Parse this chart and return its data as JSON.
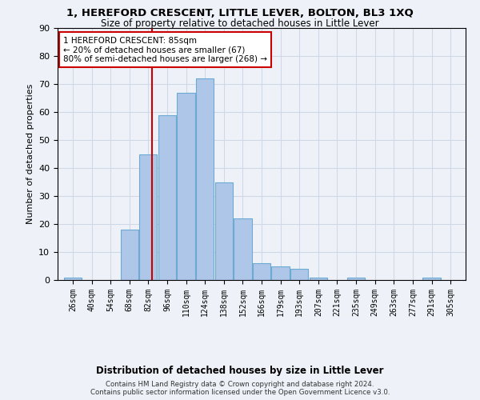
{
  "title": "1, HEREFORD CRESCENT, LITTLE LEVER, BOLTON, BL3 1XQ",
  "subtitle": "Size of property relative to detached houses in Little Lever",
  "xlabel": "Distribution of detached houses by size in Little Lever",
  "ylabel": "Number of detached properties",
  "bar_labels": [
    "26sqm",
    "40sqm",
    "54sqm",
    "68sqm",
    "82sqm",
    "96sqm",
    "110sqm",
    "124sqm",
    "138sqm",
    "152sqm",
    "166sqm",
    "179sqm",
    "193sqm",
    "207sqm",
    "221sqm",
    "235sqm",
    "249sqm",
    "263sqm",
    "277sqm",
    "291sqm",
    "305sqm"
  ],
  "bar_values": [
    1,
    0,
    0,
    18,
    45,
    59,
    67,
    72,
    35,
    22,
    6,
    5,
    4,
    1,
    0,
    1,
    0,
    0,
    0,
    1,
    0
  ],
  "bar_color": "#aec6e8",
  "bar_edge_color": "#6aaad4",
  "red_line_x": 85,
  "annotation_text": "1 HEREFORD CRESCENT: 85sqm\n← 20% of detached houses are smaller (67)\n80% of semi-detached houses are larger (268) →",
  "annotation_box_color": "#ffffff",
  "annotation_box_edge": "#cc0000",
  "grid_color": "#d0d8e8",
  "background_color": "#eef2f8",
  "footer_line1": "Contains HM Land Registry data © Crown copyright and database right 2024.",
  "footer_line2": "Contains public sector information licensed under the Open Government Licence v3.0.",
  "bin_width": 14,
  "ylim": [
    0,
    90
  ],
  "yticks": [
    0,
    10,
    20,
    30,
    40,
    50,
    60,
    70,
    80,
    90
  ]
}
